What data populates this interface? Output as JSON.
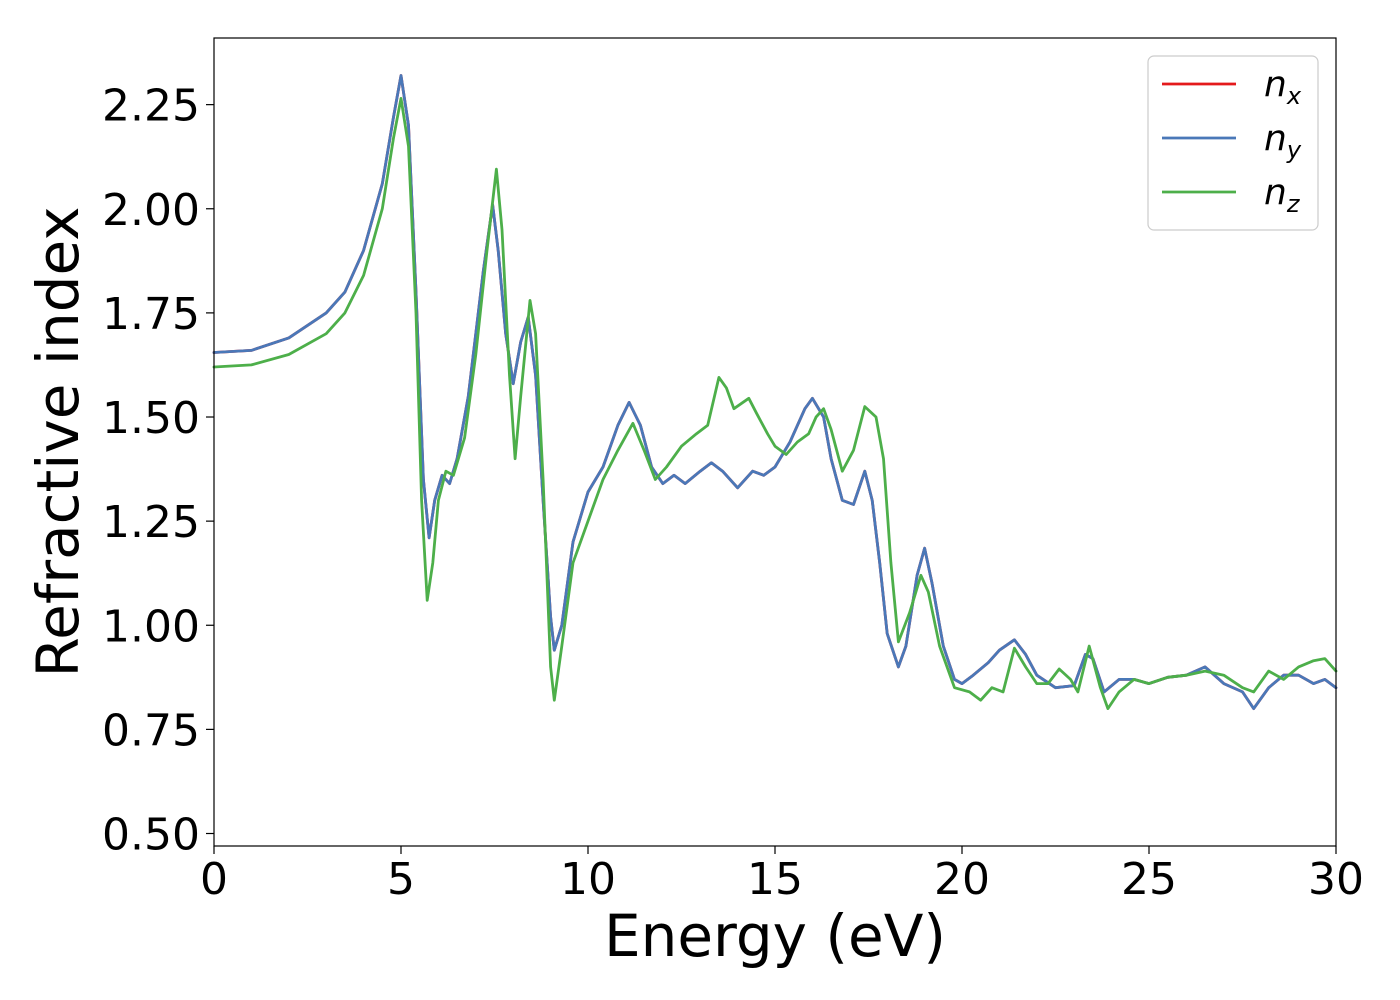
{
  "chart_data": {
    "type": "line",
    "xlabel": "Energy (eV)",
    "ylabel": "Refractive index",
    "xlim": [
      0,
      30
    ],
    "ylim": [
      0.47,
      2.41
    ],
    "x_ticks": [
      0,
      5,
      10,
      15,
      20,
      25,
      30
    ],
    "y_ticks": [
      "0.50",
      "0.75",
      "1.00",
      "1.25",
      "1.50",
      "1.75",
      "2.00",
      "2.25"
    ],
    "grid": false,
    "legend_position": "top-right",
    "series": [
      {
        "name": "n",
        "sub": "x",
        "color": "#e41a1c",
        "points": [
          [
            0,
            1.655
          ],
          [
            1,
            1.66
          ],
          [
            2,
            1.69
          ],
          [
            3,
            1.75
          ],
          [
            3.5,
            1.8
          ],
          [
            4,
            1.9
          ],
          [
            4.5,
            2.06
          ],
          [
            4.8,
            2.22
          ],
          [
            5.0,
            2.32
          ],
          [
            5.2,
            2.2
          ],
          [
            5.4,
            1.8
          ],
          [
            5.6,
            1.35
          ],
          [
            5.75,
            1.21
          ],
          [
            5.9,
            1.3
          ],
          [
            6.1,
            1.36
          ],
          [
            6.3,
            1.34
          ],
          [
            6.5,
            1.4
          ],
          [
            6.8,
            1.55
          ],
          [
            7.2,
            1.85
          ],
          [
            7.45,
            2.01
          ],
          [
            7.6,
            1.9
          ],
          [
            7.8,
            1.7
          ],
          [
            8.0,
            1.58
          ],
          [
            8.2,
            1.68
          ],
          [
            8.4,
            1.74
          ],
          [
            8.6,
            1.6
          ],
          [
            8.8,
            1.3
          ],
          [
            9.0,
            1.02
          ],
          [
            9.1,
            0.94
          ],
          [
            9.3,
            1.0
          ],
          [
            9.6,
            1.2
          ],
          [
            10.0,
            1.32
          ],
          [
            10.4,
            1.38
          ],
          [
            10.8,
            1.48
          ],
          [
            11.1,
            1.535
          ],
          [
            11.4,
            1.48
          ],
          [
            11.7,
            1.38
          ],
          [
            12.0,
            1.34
          ],
          [
            12.3,
            1.36
          ],
          [
            12.6,
            1.34
          ],
          [
            13.0,
            1.37
          ],
          [
            13.3,
            1.39
          ],
          [
            13.6,
            1.37
          ],
          [
            14.0,
            1.33
          ],
          [
            14.4,
            1.37
          ],
          [
            14.7,
            1.36
          ],
          [
            15.0,
            1.38
          ],
          [
            15.4,
            1.44
          ],
          [
            15.8,
            1.52
          ],
          [
            16.0,
            1.545
          ],
          [
            16.3,
            1.5
          ],
          [
            16.5,
            1.4
          ],
          [
            16.8,
            1.3
          ],
          [
            17.1,
            1.29
          ],
          [
            17.4,
            1.37
          ],
          [
            17.6,
            1.3
          ],
          [
            17.8,
            1.15
          ],
          [
            18.0,
            0.98
          ],
          [
            18.3,
            0.9
          ],
          [
            18.5,
            0.95
          ],
          [
            18.8,
            1.12
          ],
          [
            19.0,
            1.185
          ],
          [
            19.2,
            1.1
          ],
          [
            19.5,
            0.95
          ],
          [
            19.8,
            0.87
          ],
          [
            20.0,
            0.86
          ],
          [
            20.3,
            0.88
          ],
          [
            20.7,
            0.91
          ],
          [
            21.0,
            0.94
          ],
          [
            21.4,
            0.965
          ],
          [
            21.7,
            0.93
          ],
          [
            22.0,
            0.88
          ],
          [
            22.5,
            0.85
          ],
          [
            23.0,
            0.855
          ],
          [
            23.3,
            0.93
          ],
          [
            23.5,
            0.92
          ],
          [
            23.8,
            0.84
          ],
          [
            24.2,
            0.87
          ],
          [
            24.6,
            0.87
          ],
          [
            25.0,
            0.86
          ],
          [
            25.5,
            0.875
          ],
          [
            26.0,
            0.88
          ],
          [
            26.5,
            0.9
          ],
          [
            27.0,
            0.86
          ],
          [
            27.5,
            0.84
          ],
          [
            27.8,
            0.8
          ],
          [
            28.2,
            0.85
          ],
          [
            28.6,
            0.88
          ],
          [
            29.0,
            0.88
          ],
          [
            29.4,
            0.86
          ],
          [
            29.7,
            0.87
          ],
          [
            30.0,
            0.85
          ]
        ]
      },
      {
        "name": "n",
        "sub": "y",
        "color": "#4a78b8",
        "points": [
          [
            0,
            1.655
          ],
          [
            1,
            1.66
          ],
          [
            2,
            1.69
          ],
          [
            3,
            1.75
          ],
          [
            3.5,
            1.8
          ],
          [
            4,
            1.9
          ],
          [
            4.5,
            2.06
          ],
          [
            4.8,
            2.22
          ],
          [
            5.0,
            2.32
          ],
          [
            5.2,
            2.2
          ],
          [
            5.4,
            1.8
          ],
          [
            5.6,
            1.35
          ],
          [
            5.75,
            1.21
          ],
          [
            5.9,
            1.3
          ],
          [
            6.1,
            1.36
          ],
          [
            6.3,
            1.34
          ],
          [
            6.5,
            1.4
          ],
          [
            6.8,
            1.55
          ],
          [
            7.2,
            1.85
          ],
          [
            7.45,
            2.01
          ],
          [
            7.6,
            1.9
          ],
          [
            7.8,
            1.7
          ],
          [
            8.0,
            1.58
          ],
          [
            8.2,
            1.68
          ],
          [
            8.4,
            1.74
          ],
          [
            8.6,
            1.6
          ],
          [
            8.8,
            1.3
          ],
          [
            9.0,
            1.02
          ],
          [
            9.1,
            0.94
          ],
          [
            9.3,
            1.0
          ],
          [
            9.6,
            1.2
          ],
          [
            10.0,
            1.32
          ],
          [
            10.4,
            1.38
          ],
          [
            10.8,
            1.48
          ],
          [
            11.1,
            1.535
          ],
          [
            11.4,
            1.48
          ],
          [
            11.7,
            1.38
          ],
          [
            12.0,
            1.34
          ],
          [
            12.3,
            1.36
          ],
          [
            12.6,
            1.34
          ],
          [
            13.0,
            1.37
          ],
          [
            13.3,
            1.39
          ],
          [
            13.6,
            1.37
          ],
          [
            14.0,
            1.33
          ],
          [
            14.4,
            1.37
          ],
          [
            14.7,
            1.36
          ],
          [
            15.0,
            1.38
          ],
          [
            15.4,
            1.44
          ],
          [
            15.8,
            1.52
          ],
          [
            16.0,
            1.545
          ],
          [
            16.3,
            1.5
          ],
          [
            16.5,
            1.4
          ],
          [
            16.8,
            1.3
          ],
          [
            17.1,
            1.29
          ],
          [
            17.4,
            1.37
          ],
          [
            17.6,
            1.3
          ],
          [
            17.8,
            1.15
          ],
          [
            18.0,
            0.98
          ],
          [
            18.3,
            0.9
          ],
          [
            18.5,
            0.95
          ],
          [
            18.8,
            1.12
          ],
          [
            19.0,
            1.185
          ],
          [
            19.2,
            1.1
          ],
          [
            19.5,
            0.95
          ],
          [
            19.8,
            0.87
          ],
          [
            20.0,
            0.86
          ],
          [
            20.3,
            0.88
          ],
          [
            20.7,
            0.91
          ],
          [
            21.0,
            0.94
          ],
          [
            21.4,
            0.965
          ],
          [
            21.7,
            0.93
          ],
          [
            22.0,
            0.88
          ],
          [
            22.5,
            0.85
          ],
          [
            23.0,
            0.855
          ],
          [
            23.3,
            0.93
          ],
          [
            23.5,
            0.92
          ],
          [
            23.8,
            0.84
          ],
          [
            24.2,
            0.87
          ],
          [
            24.6,
            0.87
          ],
          [
            25.0,
            0.86
          ],
          [
            25.5,
            0.875
          ],
          [
            26.0,
            0.88
          ],
          [
            26.5,
            0.9
          ],
          [
            27.0,
            0.86
          ],
          [
            27.5,
            0.84
          ],
          [
            27.8,
            0.8
          ],
          [
            28.2,
            0.85
          ],
          [
            28.6,
            0.88
          ],
          [
            29.0,
            0.88
          ],
          [
            29.4,
            0.86
          ],
          [
            29.7,
            0.87
          ],
          [
            30.0,
            0.85
          ]
        ]
      },
      {
        "name": "n",
        "sub": "z",
        "color": "#4daf4a",
        "points": [
          [
            0,
            1.62
          ],
          [
            1,
            1.625
          ],
          [
            2,
            1.65
          ],
          [
            3,
            1.7
          ],
          [
            3.5,
            1.75
          ],
          [
            4,
            1.84
          ],
          [
            4.5,
            2.0
          ],
          [
            4.8,
            2.17
          ],
          [
            5.0,
            2.265
          ],
          [
            5.2,
            2.15
          ],
          [
            5.4,
            1.75
          ],
          [
            5.55,
            1.3
          ],
          [
            5.7,
            1.06
          ],
          [
            5.85,
            1.15
          ],
          [
            6.0,
            1.3
          ],
          [
            6.2,
            1.37
          ],
          [
            6.4,
            1.36
          ],
          [
            6.7,
            1.45
          ],
          [
            7.0,
            1.65
          ],
          [
            7.3,
            1.9
          ],
          [
            7.55,
            2.095
          ],
          [
            7.7,
            1.95
          ],
          [
            7.9,
            1.6
          ],
          [
            8.05,
            1.4
          ],
          [
            8.2,
            1.55
          ],
          [
            8.45,
            1.78
          ],
          [
            8.6,
            1.7
          ],
          [
            8.8,
            1.35
          ],
          [
            9.0,
            0.9
          ],
          [
            9.1,
            0.82
          ],
          [
            9.3,
            0.95
          ],
          [
            9.6,
            1.15
          ],
          [
            10.0,
            1.25
          ],
          [
            10.4,
            1.35
          ],
          [
            10.8,
            1.42
          ],
          [
            11.2,
            1.485
          ],
          [
            11.5,
            1.42
          ],
          [
            11.8,
            1.35
          ],
          [
            12.1,
            1.38
          ],
          [
            12.5,
            1.43
          ],
          [
            12.9,
            1.46
          ],
          [
            13.2,
            1.48
          ],
          [
            13.5,
            1.595
          ],
          [
            13.7,
            1.57
          ],
          [
            13.9,
            1.52
          ],
          [
            14.3,
            1.545
          ],
          [
            14.5,
            1.51
          ],
          [
            14.8,
            1.46
          ],
          [
            15.0,
            1.43
          ],
          [
            15.3,
            1.41
          ],
          [
            15.6,
            1.44
          ],
          [
            15.9,
            1.46
          ],
          [
            16.1,
            1.5
          ],
          [
            16.3,
            1.52
          ],
          [
            16.5,
            1.47
          ],
          [
            16.8,
            1.37
          ],
          [
            17.1,
            1.42
          ],
          [
            17.4,
            1.525
          ],
          [
            17.7,
            1.5
          ],
          [
            17.9,
            1.4
          ],
          [
            18.1,
            1.15
          ],
          [
            18.3,
            0.96
          ],
          [
            18.6,
            1.03
          ],
          [
            18.9,
            1.12
          ],
          [
            19.1,
            1.08
          ],
          [
            19.4,
            0.95
          ],
          [
            19.8,
            0.85
          ],
          [
            20.2,
            0.84
          ],
          [
            20.5,
            0.82
          ],
          [
            20.8,
            0.85
          ],
          [
            21.1,
            0.84
          ],
          [
            21.4,
            0.945
          ],
          [
            21.7,
            0.9
          ],
          [
            22.0,
            0.86
          ],
          [
            22.3,
            0.86
          ],
          [
            22.6,
            0.895
          ],
          [
            22.9,
            0.87
          ],
          [
            23.1,
            0.84
          ],
          [
            23.4,
            0.95
          ],
          [
            23.7,
            0.85
          ],
          [
            23.9,
            0.8
          ],
          [
            24.2,
            0.84
          ],
          [
            24.6,
            0.87
          ],
          [
            25.0,
            0.86
          ],
          [
            25.5,
            0.875
          ],
          [
            26.0,
            0.88
          ],
          [
            26.5,
            0.89
          ],
          [
            27.0,
            0.88
          ],
          [
            27.5,
            0.85
          ],
          [
            27.8,
            0.84
          ],
          [
            28.2,
            0.89
          ],
          [
            28.6,
            0.87
          ],
          [
            29.0,
            0.9
          ],
          [
            29.4,
            0.915
          ],
          [
            29.7,
            0.92
          ],
          [
            30.0,
            0.89
          ]
        ]
      }
    ]
  }
}
